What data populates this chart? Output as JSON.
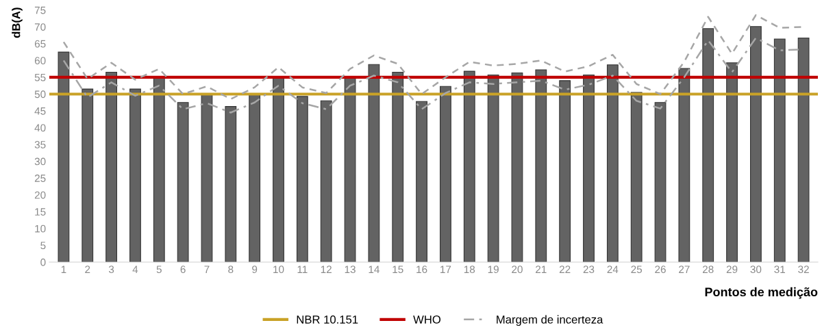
{
  "chart_data": {
    "type": "bar",
    "xlabel": "Pontos de medição",
    "ylabel": "dB(A)",
    "categories": [
      "1",
      "2",
      "3",
      "4",
      "5",
      "6",
      "7",
      "8",
      "9",
      "10",
      "11",
      "12",
      "13",
      "14",
      "15",
      "16",
      "17",
      "18",
      "19",
      "20",
      "21",
      "22",
      "23",
      "24",
      "25",
      "26",
      "27",
      "28",
      "29",
      "30",
      "31",
      "32"
    ],
    "series": [
      {
        "color": "#636363",
        "values": [
          62.5,
          51.5,
          56.5,
          51.5,
          55,
          47.5,
          50,
          46.3,
          50,
          55,
          49.3,
          48,
          55,
          58.8,
          56.5,
          47.8,
          52.3,
          56.8,
          55.7,
          56.3,
          57.2,
          54,
          55.7,
          58.7,
          50.5,
          47.5,
          57.6,
          69.5,
          59.3,
          70.1,
          66.4,
          66.7
        ]
      },
      {
        "type": "line",
        "line_style": "dashed",
        "color": "#a6a6a6",
        "values": [
          65.5,
          54.5,
          59.3,
          54.3,
          57.5,
          50,
          52.3,
          48.5,
          52,
          58,
          52,
          50.3,
          57.5,
          61.5,
          59,
          50,
          55,
          59.6,
          58.5,
          59,
          60,
          56.7,
          58.3,
          61.7,
          53,
          50,
          59.6,
          73,
          62,
          73.5,
          69.7,
          70
        ]
      },
      {
        "type": "line",
        "line_style": "dashdot",
        "name": "Margem de incerteza",
        "color": "#a6a6a6",
        "values": [
          60,
          49,
          53.5,
          49.5,
          52.5,
          45.5,
          47.3,
          44.5,
          47.5,
          52.5,
          47.3,
          45.5,
          52.5,
          55.5,
          53.5,
          45.5,
          50.3,
          53.5,
          53,
          53.5,
          54,
          51.3,
          52.8,
          55.5,
          48,
          45.7,
          55,
          66,
          56.5,
          66.7,
          63,
          63.3
        ]
      }
    ],
    "ref_lines": [
      {
        "axis": "y",
        "value": 50,
        "label": "NBR 10.151",
        "color": "#c9a227"
      },
      {
        "axis": "y",
        "value": 55,
        "label": "WHO",
        "color": "#c00000"
      }
    ],
    "ylim": [
      0,
      75
    ],
    "yticks": [
      0,
      5,
      10,
      15,
      20,
      25,
      30,
      35,
      40,
      45,
      50,
      55,
      60,
      65,
      70,
      75
    ],
    "grid": false,
    "legend": "bottom"
  }
}
